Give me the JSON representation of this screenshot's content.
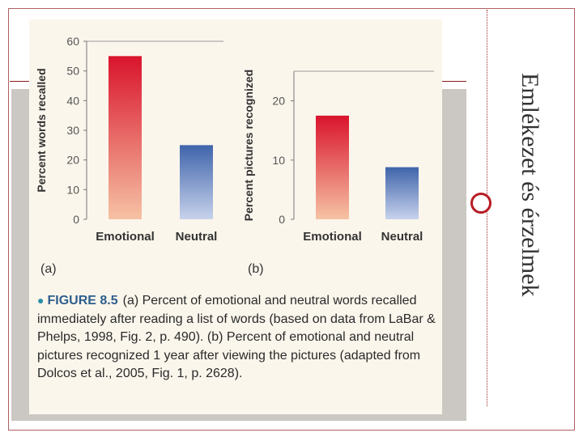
{
  "slide": {
    "title": "Emlékezet és érzelmek"
  },
  "figure": {
    "label": "FIGURE 8.5",
    "caption": "(a) Percent of emotional and neutral words recalled immediately after reading a list of words (based on data from LaBar & Phelps, 1998, Fig. 2, p. 490). (b) Percent of emotional and neutral pictures recognized 1 year after viewing the pictures (adapted from Dolcos et al., 2005, Fig. 1, p. 2628)."
  },
  "colors": {
    "emotional_bar_top": "#d9142c",
    "emotional_bar_bottom": "#f6c2a4",
    "neutral_bar_top": "#3f64aa",
    "neutral_bar_bottom": "#c7d2ec",
    "accent": "#b81c24"
  },
  "chart_data": [
    {
      "type": "bar",
      "panel_label": "(a)",
      "title": "",
      "xlabel": "",
      "ylabel": "Percent words recalled",
      "categories": [
        "Emotional",
        "Neutral"
      ],
      "values": [
        55,
        25
      ],
      "ylim": [
        0,
        60
      ],
      "yticks": [
        0,
        10,
        20,
        30,
        40,
        50,
        60
      ],
      "grid": false
    },
    {
      "type": "bar",
      "panel_label": "(b)",
      "title": "",
      "xlabel": "",
      "ylabel": "Percent pictures recognized",
      "categories": [
        "Emotional",
        "Neutral"
      ],
      "values": [
        17.5,
        8.8
      ],
      "ylim": [
        0,
        25
      ],
      "yticks": [
        0,
        10,
        20
      ],
      "grid": false
    }
  ]
}
